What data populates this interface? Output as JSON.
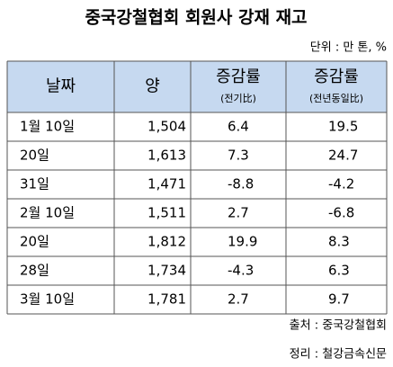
{
  "header": {
    "title": "중국강철협회 회원사 강재 재고",
    "unit": "단위 : 만 톤, %"
  },
  "table": {
    "columns": [
      {
        "label": "날짜"
      },
      {
        "label": "양"
      },
      {
        "label": "증감률",
        "sub": "(전기比)"
      },
      {
        "label": "증감률",
        "sub": "(전년동일比)"
      }
    ],
    "rows": [
      [
        "1월 10일",
        "1,504",
        "6.4",
        "19.5"
      ],
      [
        "20일",
        "1,613",
        "7.3",
        "24.7"
      ],
      [
        "31일",
        "1,471",
        "-8.8",
        "-4.2"
      ],
      [
        "2월 10일",
        "1,511",
        "2.7",
        "-6.8"
      ],
      [
        "20일",
        "1,812",
        "19.9",
        "8.3"
      ],
      [
        "28일",
        "1,734",
        "-4.3",
        "6.3"
      ],
      [
        "3월 10일",
        "1,781",
        "2.7",
        "9.7"
      ]
    ]
  },
  "footer": {
    "source": "출처 : 중국강철협회",
    "editor": "정리 : 철강금속신문"
  }
}
